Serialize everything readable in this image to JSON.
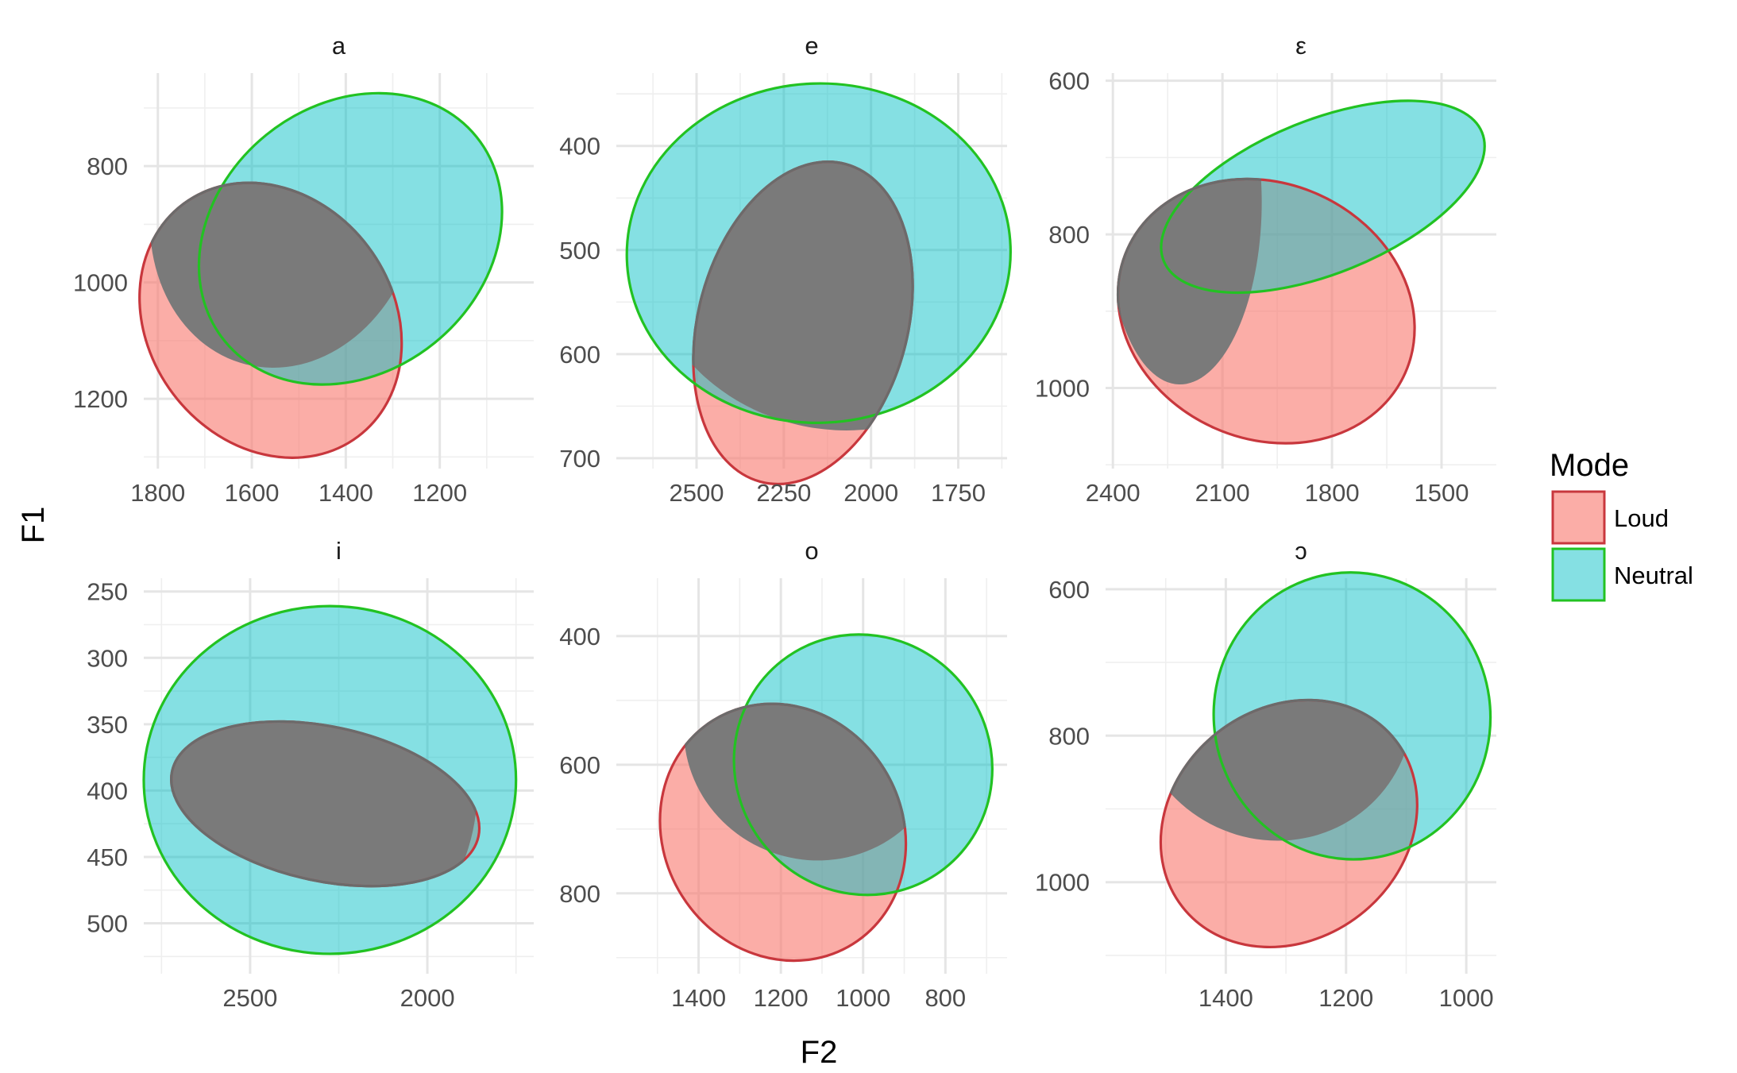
{
  "chart_data": {
    "type": "scatter",
    "subtype": "confidence-ellipses",
    "facet_layout": "2x3",
    "x_reversed": true,
    "y_reversed": true,
    "grid": true,
    "xlabel": "F2",
    "ylabel": "F1",
    "legend": {
      "title": "Mode",
      "position": "right",
      "entries": [
        {
          "name": "Loud",
          "fill": "#F8766D",
          "stroke": "#C8373D"
        },
        {
          "name": "Neutral",
          "fill": "#00BFC4",
          "stroke": "#22C222"
        }
      ]
    },
    "overlap_color": "#7a7a7a",
    "panels": [
      {
        "title": "a",
        "xlim": [
          1000,
          1830
        ],
        "ylim": [
          1320,
          640
        ],
        "xticks": [
          1800,
          1600,
          1400,
          1200
        ],
        "yticks": [
          800,
          1000,
          1200
        ],
        "series": [
          {
            "name": "Loud",
            "cx": 1560,
            "cy": 1065,
            "rx": 260,
            "ry": 250,
            "rotation": 37
          },
          {
            "name": "Neutral",
            "cx": 1390,
            "cy": 925,
            "rx": 345,
            "ry": 230,
            "rotation": 39
          }
        ]
      },
      {
        "title": "e",
        "xlim": [
          1610,
          2730
        ],
        "ylim": [
          710,
          330
        ],
        "xticks": [
          2500,
          2250,
          2000,
          1750
        ],
        "yticks": [
          400,
          500,
          600,
          700
        ],
        "series": [
          {
            "name": "Loud",
            "cx": 2195,
            "cy": 570,
            "rx": 300,
            "ry": 158,
            "rotation": -15
          },
          {
            "name": "Neutral",
            "cx": 2150,
            "cy": 503,
            "rx": 550,
            "ry": 163,
            "rotation": 2
          }
        ]
      },
      {
        "title": "ε",
        "xlim": [
          1350,
          2420
        ],
        "ylim": [
          1105,
          590
        ],
        "xticks": [
          2400,
          2100,
          1800,
          1500
        ],
        "yticks": [
          600,
          800,
          1000
        ],
        "series": [
          {
            "name": "Loud",
            "cx": 1980,
            "cy": 900,
            "rx": 350,
            "ry": 198,
            "rotation": 66
          },
          {
            "name": "Neutral",
            "cx": 1825,
            "cy": 751,
            "rx": 470,
            "ry": 100,
            "rotation": 22
          }
        ]
      },
      {
        "title": "i",
        "xlim": [
          1700,
          2800
        ],
        "ylim": [
          538,
          240
        ],
        "xticks": [
          2500,
          2000
        ],
        "yticks": [
          250,
          300,
          350,
          400,
          450,
          500
        ],
        "series": [
          {
            "name": "Loud",
            "cx": 2288,
            "cy": 410,
            "rx": 218,
            "ry": 118,
            "rotation": 78
          },
          {
            "name": "Neutral",
            "cx": 2275,
            "cy": 392,
            "rx": 525,
            "ry": 131,
            "rotation": 0
          }
        ]
      },
      {
        "title": "o",
        "xlim": [
          650,
          1600
        ],
        "ylim": [
          925,
          310
        ],
        "xticks": [
          1400,
          1200,
          1000,
          800
        ],
        "yticks": [
          400,
          600,
          800
        ],
        "series": [
          {
            "name": "Loud",
            "cx": 1195,
            "cy": 705,
            "rx": 290,
            "ry": 205,
            "rotation": 32
          },
          {
            "name": "Neutral",
            "cx": 1000,
            "cy": 600,
            "rx": 310,
            "ry": 205,
            "rotation": 38
          }
        ]
      },
      {
        "title": "ɔ",
        "xlim": [
          950,
          1600
        ],
        "ylim": [
          1125,
          585
        ],
        "xticks": [
          1400,
          1200,
          1000
        ],
        "yticks": [
          600,
          800,
          1000
        ],
        "series": [
          {
            "name": "Loud",
            "cx": 1295,
            "cy": 920,
            "rx": 225,
            "ry": 158,
            "rotation": 38
          },
          {
            "name": "Neutral",
            "cx": 1190,
            "cy": 773,
            "rx": 230,
            "ry": 196,
            "rotation": 8
          }
        ]
      }
    ]
  }
}
